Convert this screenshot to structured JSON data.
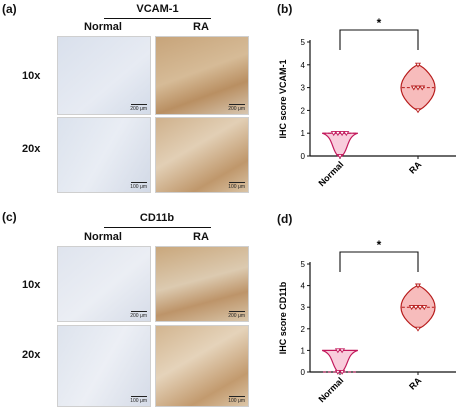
{
  "panels": [
    {
      "letter": "(a)",
      "marker": "VCAM-1",
      "col_normal": "Normal",
      "col_ra": "RA",
      "row_10x": "10x",
      "row_20x": "20x",
      "scale_10x": "200 μm",
      "scale_20x": "100 μm"
    },
    {
      "letter": "(c)",
      "marker": "CD11b",
      "col_normal": "Normal",
      "col_ra": "RA",
      "row_10x": "10x",
      "row_20x": "20x",
      "scale_10x": "200 μm",
      "scale_20x": "100 μm"
    }
  ],
  "colors": {
    "normal_fill": "#f7bcd0",
    "normal_stroke": "#c2185b",
    "ra_fill": "#f4a6a6",
    "ra_stroke": "#b71c1c",
    "tissue_normal": "#dde3ee",
    "tissue_ra": "#c9a57b"
  },
  "chart_data": [
    {
      "letter": "(b)",
      "type": "violin",
      "ylabel": "IHC score VCAM-1",
      "ylim": [
        0,
        5
      ],
      "yticks": [
        0,
        1,
        2,
        3,
        4,
        5
      ],
      "categories": [
        "Normal",
        "RA"
      ],
      "significance": "*",
      "series": [
        {
          "category": "Normal",
          "points": [
            1,
            1,
            1,
            1,
            0
          ],
          "median": 1
        },
        {
          "category": "RA",
          "points": [
            4,
            3,
            3,
            3,
            2
          ],
          "median": 3
        }
      ]
    },
    {
      "letter": "(d)",
      "type": "violin",
      "ylabel": "IHC score CD11b",
      "ylim": [
        0,
        5
      ],
      "yticks": [
        0,
        1,
        2,
        3,
        4,
        5
      ],
      "categories": [
        "Normal",
        "RA"
      ],
      "significance": "*",
      "series": [
        {
          "category": "Normal",
          "points": [
            1,
            1,
            0,
            0
          ],
          "median": 0
        },
        {
          "category": "RA",
          "points": [
            4,
            3,
            3,
            3,
            3,
            2
          ],
          "median": 3
        }
      ]
    }
  ]
}
